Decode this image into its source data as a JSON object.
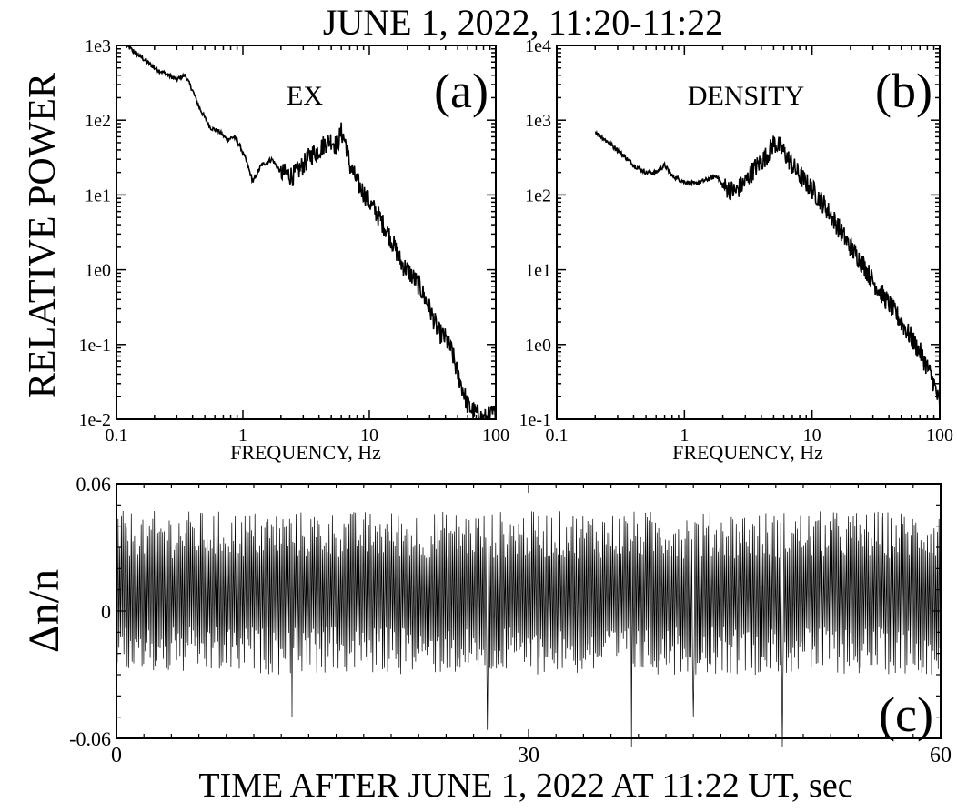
{
  "figure": {
    "title": "JUNE 1, 2022, 11:20-11:22",
    "shared_ylabel": "RELATIVE POWER"
  },
  "chart_data": [
    {
      "id": "a",
      "type": "line",
      "panel_label": "(a)",
      "annotation": "EX",
      "xlabel": "FREQUENCY, Hz",
      "xscale": "log",
      "yscale": "log",
      "xlim": [
        0.1,
        100
      ],
      "ylim": [
        0.01,
        1000
      ],
      "x_ticks": [
        0.1,
        1,
        10,
        100
      ],
      "x_tick_labels": [
        "0.1",
        "1",
        "10",
        "100"
      ],
      "y_ticks": [
        0.01,
        0.1,
        1,
        10,
        100,
        1000
      ],
      "y_tick_labels": [
        "1e-2",
        "1e-1",
        "1e0",
        "1e1",
        "1e2",
        "1e3"
      ],
      "series": [
        {
          "x": [
            0.12,
            0.2,
            0.3,
            0.35,
            0.4,
            0.45,
            0.55,
            0.65,
            0.75,
            0.85,
            0.95,
            1.05,
            1.2,
            1.4,
            1.7,
            2.0,
            2.5,
            3.0,
            3.5,
            4.0,
            4.5,
            5.0,
            5.5,
            6.0,
            6.5,
            7.0,
            8.0,
            10,
            12,
            15,
            18,
            20,
            25,
            30,
            35,
            40,
            45,
            50,
            55,
            60,
            70,
            80,
            90,
            100
          ],
          "y": [
            1000,
            500,
            350,
            400,
            250,
            150,
            80,
            70,
            55,
            60,
            45,
            30,
            15,
            25,
            30,
            20,
            18,
            25,
            35,
            40,
            50,
            55,
            45,
            70,
            50,
            25,
            15,
            8,
            5,
            2.5,
            1.2,
            1.0,
            0.6,
            0.3,
            0.15,
            0.12,
            0.08,
            0.04,
            0.025,
            0.015,
            0.012,
            0.01,
            0.011,
            0.012
          ]
        }
      ]
    },
    {
      "id": "b",
      "type": "line",
      "panel_label": "(b)",
      "annotation": "DENSITY",
      "xlabel": "FREQUENCY, Hz",
      "xscale": "log",
      "yscale": "log",
      "xlim": [
        0.1,
        100
      ],
      "ylim": [
        0.1,
        10000
      ],
      "x_ticks": [
        0.1,
        1,
        10,
        100
      ],
      "x_tick_labels": [
        "0.1",
        "1",
        "10",
        "100"
      ],
      "y_ticks": [
        0.1,
        1,
        10,
        100,
        1000,
        10000
      ],
      "y_tick_labels": [
        "1e-1",
        "1e0",
        "1e1",
        "1e2",
        "1e3",
        "1e4"
      ],
      "series": [
        {
          "x": [
            0.2,
            0.3,
            0.4,
            0.5,
            0.6,
            0.7,
            0.8,
            1.0,
            1.2,
            1.5,
            1.8,
            2.0,
            2.5,
            3.0,
            3.5,
            4.0,
            4.5,
            5.0,
            5.5,
            6.0,
            7.0,
            8.0,
            10,
            12,
            15,
            20,
            25,
            30,
            40,
            50,
            60,
            70,
            80,
            90,
            100
          ],
          "y": [
            700,
            400,
            250,
            200,
            200,
            250,
            180,
            150,
            140,
            160,
            180,
            130,
            110,
            150,
            220,
            280,
            350,
            500,
            450,
            380,
            250,
            180,
            120,
            80,
            45,
            20,
            12,
            7,
            3.5,
            2.0,
            1.2,
            0.8,
            0.5,
            0.3,
            0.15
          ]
        }
      ]
    },
    {
      "id": "c",
      "type": "line",
      "panel_label": "(c)",
      "ylabel": "Δn/n",
      "xlabel": "TIME AFTER JUNE 1, 2022 AT 11:22 UT, sec",
      "xlim": [
        0,
        60
      ],
      "ylim": [
        -0.06,
        0.06
      ],
      "x_ticks": [
        0,
        30,
        60
      ],
      "x_tick_labels": [
        "0",
        "30",
        "60"
      ],
      "y_ticks": [
        -0.06,
        0,
        0.06
      ],
      "y_tick_labels": [
        "-0.06",
        "0",
        "0.06"
      ],
      "series": [
        {
          "sample_interval_sec": 0.06,
          "typical_positive_peak": 0.045,
          "typical_negative_trough": -0.025,
          "min_spikes": [
            {
              "t": 37.5,
              "value": -0.064
            },
            {
              "t": 48.5,
              "value": -0.064
            },
            {
              "t": 27.0,
              "value": -0.056
            },
            {
              "t": 12.8,
              "value": -0.05
            },
            {
              "t": 42.0,
              "value": -0.05
            }
          ]
        }
      ]
    }
  ]
}
